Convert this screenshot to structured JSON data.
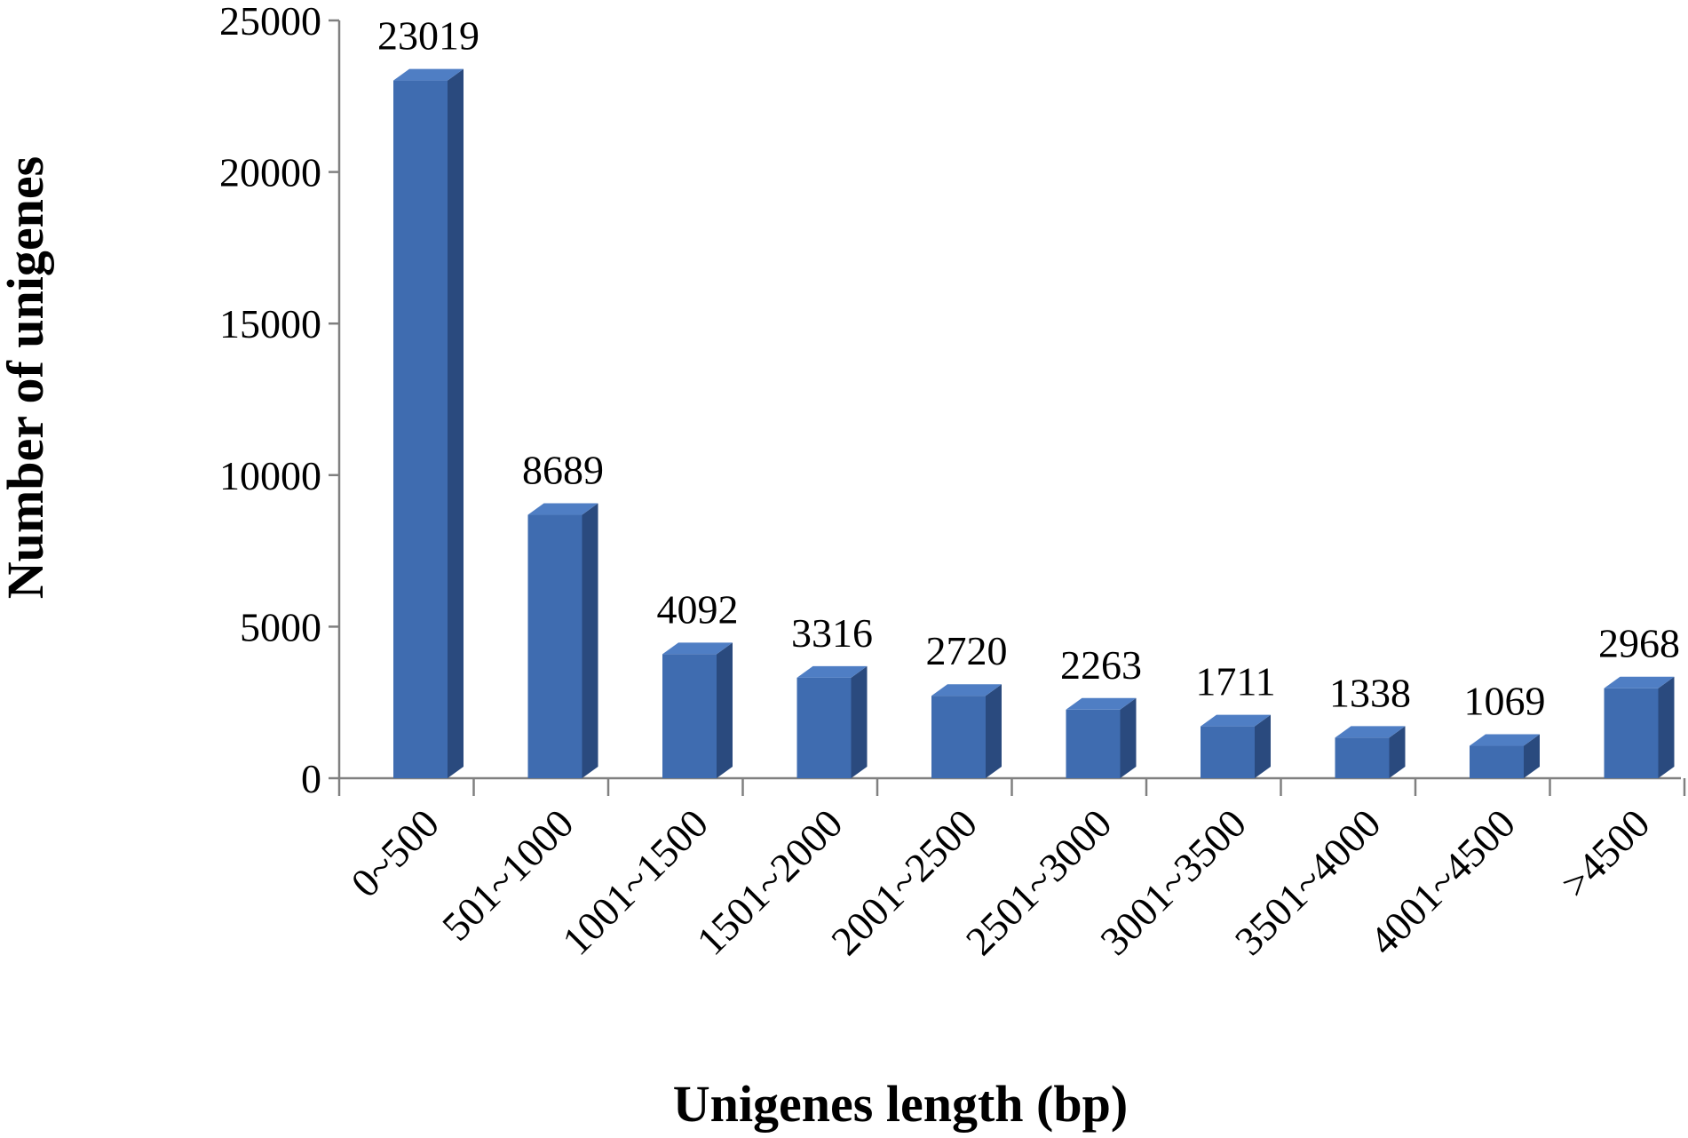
{
  "chart_data": {
    "type": "bar",
    "title": "",
    "xlabel": "Unigenes length (bp)",
    "ylabel": "Number of unigenes",
    "categories": [
      "0~500",
      "501~1000",
      "1001~1500",
      "1501~2000",
      "2001~2500",
      "2501~3000",
      "3001~3500",
      "3501~4000",
      "4001~4500",
      ">4500"
    ],
    "values": [
      23019,
      8689,
      4092,
      3316,
      2720,
      2263,
      1711,
      1338,
      1069,
      2968
    ],
    "data_labels": [
      "23019",
      "8689",
      "4092",
      "3316",
      "2720",
      "2263",
      "1711",
      "1338",
      "1069",
      "2968"
    ],
    "yticks": [
      0,
      5000,
      10000,
      15000,
      20000,
      25000
    ],
    "ytick_labels": [
      "0",
      "5000",
      "10000",
      "15000",
      "20000",
      "25000"
    ],
    "ylim": [
      0,
      25000
    ],
    "grid": false,
    "legend": "none",
    "style": "3d-column",
    "colors": {
      "bar_front": "#3F6CB0",
      "bar_side": "#2A4A7E",
      "bar_top": "#4F7EC4",
      "axis": "#808080"
    }
  }
}
